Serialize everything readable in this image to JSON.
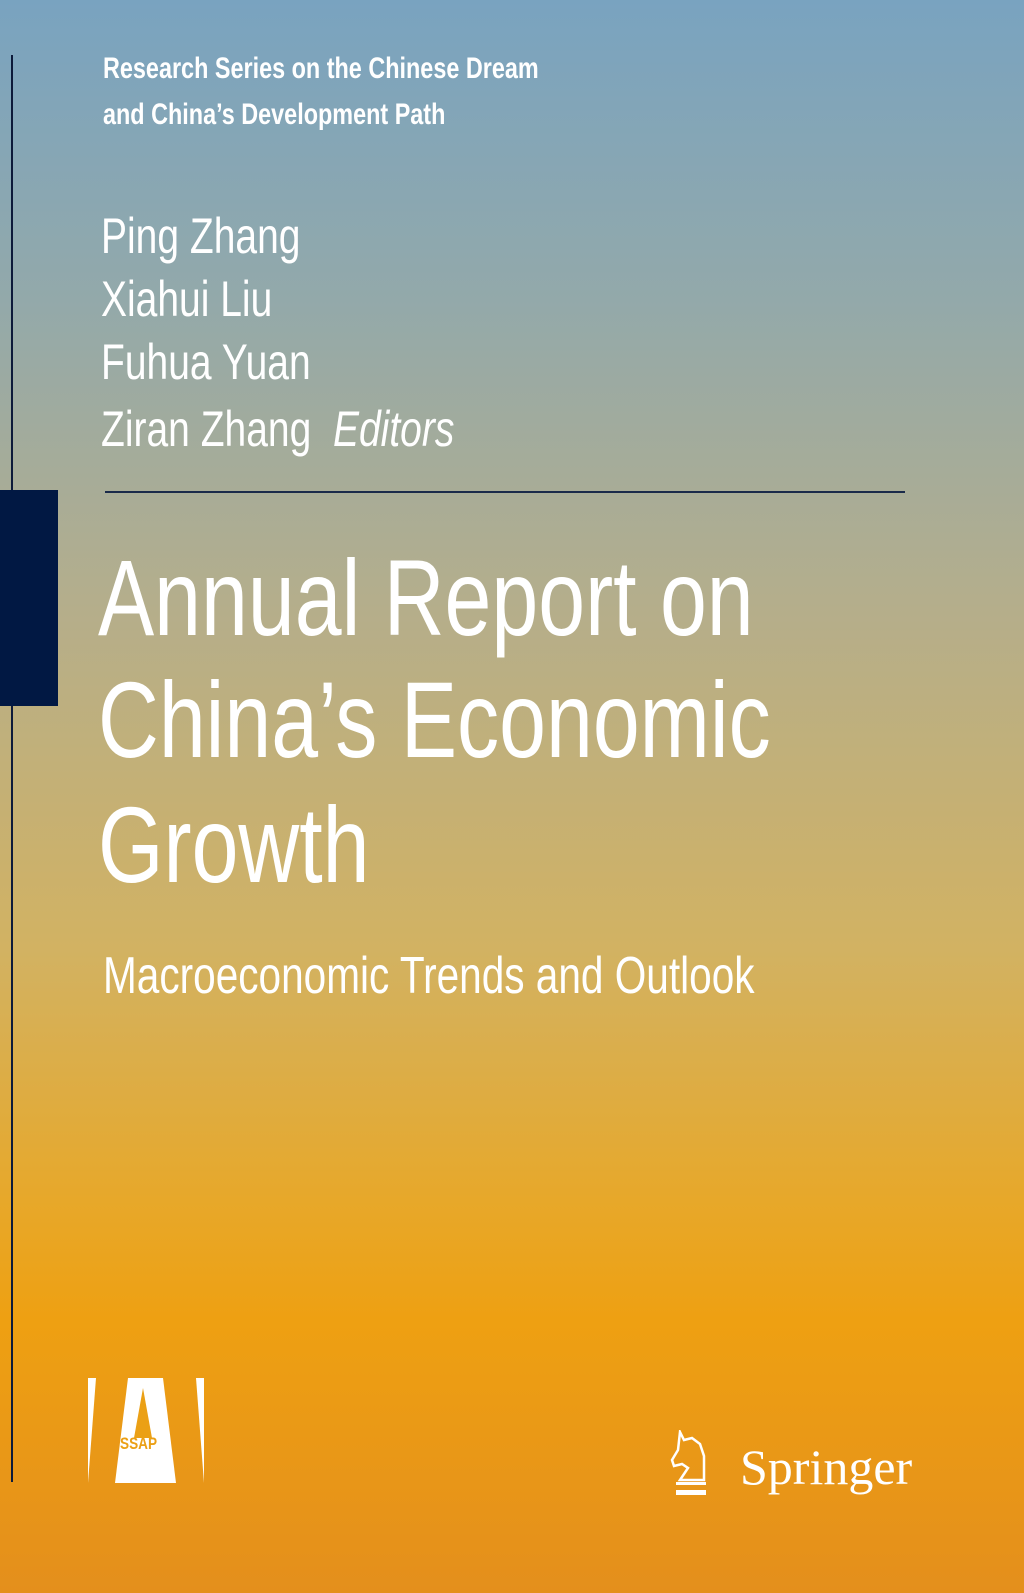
{
  "series": {
    "line1": "Research Series on the Chinese Dream",
    "line2": "and China’s Development Path"
  },
  "editors": [
    "Ping Zhang",
    "Xiahui Liu",
    "Fuhua Yuan",
    "Ziran Zhang"
  ],
  "editors_label": "Editors",
  "title": {
    "line1": "Annual Report on",
    "line2": "China’s Economic",
    "line3": "Growth"
  },
  "subtitle": "Macroeconomic Trends and Outlook",
  "publishers": {
    "ssap": "SSAP",
    "springer": "Springer"
  },
  "colors": {
    "spine": "#011843",
    "top": "#79a3c0",
    "bottom": "#e48f1c"
  }
}
